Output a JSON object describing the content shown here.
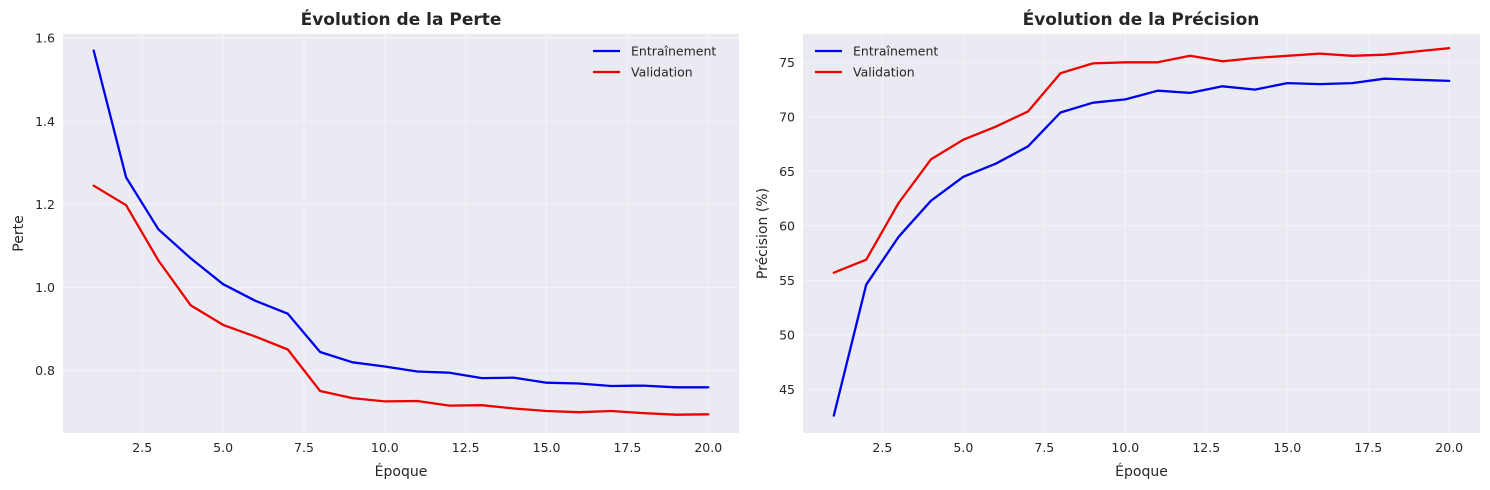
{
  "chart_data": [
    {
      "type": "line",
      "title": "Évolution de la Perte",
      "xlabel": "Époque",
      "ylabel": "Perte",
      "xlim": [
        0.05,
        20.95
      ],
      "ylim": [
        0.65,
        1.61
      ],
      "xticks": [
        2.5,
        5.0,
        7.5,
        10.0,
        12.5,
        15.0,
        17.5,
        20.0
      ],
      "xtick_labels": [
        "2.5",
        "5.0",
        "7.5",
        "10.0",
        "12.5",
        "15.0",
        "17.5",
        "20.0"
      ],
      "yticks": [
        0.8,
        1.0,
        1.2,
        1.4,
        1.6
      ],
      "ytick_labels": [
        "0.8",
        "1.0",
        "1.2",
        "1.4",
        "1.6"
      ],
      "grid": true,
      "legend_position": "top-right",
      "x": [
        1,
        2,
        3,
        4,
        5,
        6,
        7,
        8,
        9,
        10,
        11,
        12,
        13,
        14,
        15,
        16,
        17,
        18,
        19,
        20
      ],
      "series": [
        {
          "name": "Entraînement",
          "color": "#0000ee",
          "values": [
            1.57,
            1.265,
            1.14,
            1.07,
            1.008,
            0.968,
            0.937,
            0.845,
            0.82,
            0.81,
            0.798,
            0.795,
            0.782,
            0.783,
            0.771,
            0.769,
            0.763,
            0.764,
            0.76,
            0.76
          ]
        },
        {
          "name": "Validation",
          "color": "#ee0000",
          "values": [
            1.245,
            1.198,
            1.065,
            0.957,
            0.91,
            0.882,
            0.851,
            0.751,
            0.734,
            0.726,
            0.727,
            0.716,
            0.717,
            0.709,
            0.703,
            0.7,
            0.703,
            0.698,
            0.694,
            0.695
          ]
        }
      ]
    },
    {
      "type": "line",
      "title": "Évolution de la Précision",
      "xlabel": "Époque",
      "ylabel": "Précision (%)",
      "xlim": [
        0.05,
        20.95
      ],
      "ylim": [
        41.0,
        77.6
      ],
      "xticks": [
        2.5,
        5.0,
        7.5,
        10.0,
        12.5,
        15.0,
        17.5,
        20.0
      ],
      "xtick_labels": [
        "2.5",
        "5.0",
        "7.5",
        "10.0",
        "12.5",
        "15.0",
        "17.5",
        "20.0"
      ],
      "yticks": [
        45,
        50,
        55,
        60,
        65,
        70,
        75
      ],
      "ytick_labels": [
        "45",
        "50",
        "55",
        "60",
        "65",
        "70",
        "75"
      ],
      "grid": true,
      "legend_position": "top-left",
      "x": [
        1,
        2,
        3,
        4,
        5,
        6,
        7,
        8,
        9,
        10,
        11,
        12,
        13,
        14,
        15,
        16,
        17,
        18,
        19,
        20
      ],
      "series": [
        {
          "name": "Entraînement",
          "color": "#0000ee",
          "values": [
            42.6,
            54.6,
            59.0,
            62.3,
            64.5,
            65.7,
            67.3,
            70.4,
            71.3,
            71.6,
            72.4,
            72.2,
            72.8,
            72.5,
            73.1,
            73.0,
            73.1,
            73.5,
            73.4,
            73.3
          ]
        },
        {
          "name": "Validation",
          "color": "#ee0000",
          "values": [
            55.7,
            56.9,
            62.1,
            66.1,
            67.9,
            69.1,
            70.5,
            74.0,
            74.9,
            75.0,
            75.0,
            75.6,
            75.1,
            75.4,
            75.6,
            75.8,
            75.6,
            75.7,
            76.0,
            76.3
          ]
        }
      ]
    }
  ]
}
